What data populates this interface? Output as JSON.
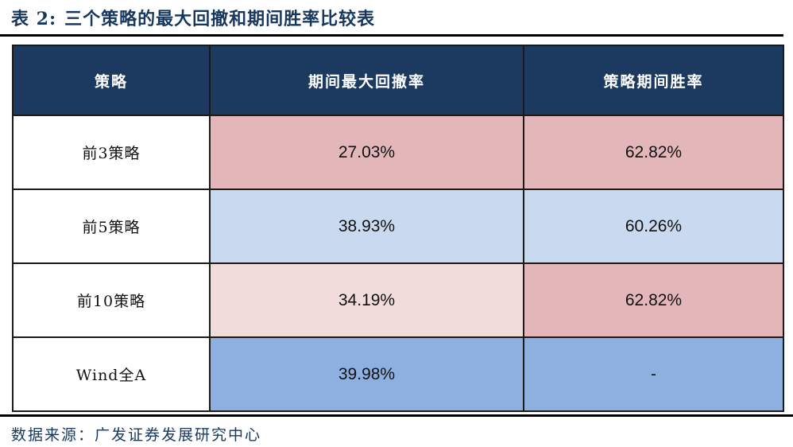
{
  "title": {
    "label": "表 2:",
    "text": "三个策略的最大回撤和期间胜率比较表"
  },
  "table": {
    "headers": [
      "策略",
      "期间最大回撤率",
      "策略期间胜率"
    ],
    "rows": [
      {
        "strategy": "前3策略",
        "drawdown": "27.03%",
        "win_rate": "62.82%",
        "drawdown_bg": "#E3B6B9",
        "win_bg": "#E3B6B9"
      },
      {
        "strategy": "前5策略",
        "drawdown": "38.93%",
        "win_rate": "60.26%",
        "drawdown_bg": "#C8D9F0",
        "win_bg": "#C8D9F0"
      },
      {
        "strategy": "前10策略",
        "drawdown": "34.19%",
        "win_rate": "62.82%",
        "drawdown_bg": "#F2DCDB",
        "win_bg": "#E3B6B9"
      },
      {
        "strategy": "Wind全A",
        "drawdown": "39.98%",
        "win_rate": "-",
        "drawdown_bg": "#8DB0E0",
        "win_bg": "#8DB0E0"
      }
    ]
  },
  "footer": {
    "source": "数据来源：广发证券发展研究中心"
  },
  "colors": {
    "header_bg": "#1C3A5F",
    "title_text": "#17375E",
    "pink": "#E3B6B9",
    "pale_pink": "#F2DCDB",
    "light_blue": "#C8D9F0",
    "medium_blue": "#8DB0E0",
    "rule_black": "#000000"
  },
  "chart_data": {
    "type": "table",
    "title": "三个策略的最大回撤和期间胜率比较表",
    "columns": [
      "策略",
      "期间最大回撤率",
      "策略期间胜率"
    ],
    "rows": [
      [
        "前3策略",
        "27.03%",
        "62.82%"
      ],
      [
        "前5策略",
        "38.93%",
        "60.26%"
      ],
      [
        "前10策略",
        "34.19%",
        "62.82%"
      ],
      [
        "Wind全A",
        "39.98%",
        "-"
      ]
    ]
  }
}
